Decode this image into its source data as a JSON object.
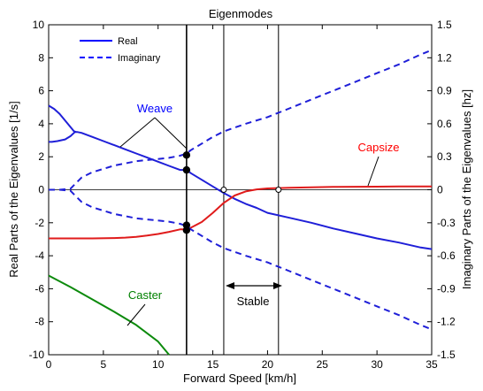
{
  "chart_data": {
    "type": "line",
    "title": "Eigenmodes",
    "xlabel": "Forward Speed [km/h]",
    "ylabel_left": "Real Parts of the Eigenvalues [1/s]",
    "ylabel_right": "Imaginary Parts of the Eigenvalues [hz]",
    "xlim": [
      0,
      35
    ],
    "ylim_left": [
      -10,
      10
    ],
    "ylim_right": [
      -1.5,
      1.5
    ],
    "xticks": [
      "0",
      "5",
      "10",
      "15",
      "20",
      "25",
      "30",
      "35"
    ],
    "yticks_left": [
      "-10",
      "-8",
      "-6",
      "-4",
      "-2",
      "0",
      "2",
      "4",
      "6",
      "8",
      "10"
    ],
    "yticks_right": [
      "-1.5",
      "-1.2",
      "-0.9",
      "-0.6",
      "-0.3",
      "0",
      "0.3",
      "0.6",
      "0.9",
      "1.2",
      "1.5"
    ],
    "grid": false,
    "legend_position": "top-left",
    "legend": [
      {
        "label": "Real",
        "style": "solid",
        "color": "#0000ff"
      },
      {
        "label": "Imaginary",
        "style": "dashed",
        "color": "#0000ff"
      }
    ],
    "series": [
      {
        "name": "Weave",
        "part": "real",
        "color": "#1f1fd8",
        "x": [
          0,
          0.3,
          0.8,
          1.5,
          2.0,
          2.4,
          2.6,
          3,
          4,
          5,
          6,
          7,
          8,
          9,
          10,
          11,
          12,
          12.6,
          13,
          14,
          15,
          16,
          17,
          18,
          19,
          20,
          22,
          24,
          26,
          28,
          30,
          32,
          34,
          35
        ],
        "y": [
          2.9,
          2.9,
          2.95,
          3.05,
          3.25,
          3.5,
          3.5,
          3.45,
          3.2,
          2.95,
          2.7,
          2.45,
          2.2,
          1.95,
          1.7,
          1.45,
          1.2,
          1.2,
          1.0,
          0.6,
          0.2,
          -0.2,
          -0.55,
          -0.85,
          -1.1,
          -1.4,
          -1.7,
          -2.0,
          -2.35,
          -2.65,
          -2.95,
          -3.2,
          -3.5,
          -3.6
        ]
      },
      {
        "name": "",
        "part": "real",
        "color": "#1f1fd8",
        "x": [
          0,
          0.5,
          1.0,
          1.5,
          2.0,
          2.3,
          2.5
        ],
        "y": [
          5.1,
          4.9,
          4.6,
          4.2,
          3.8,
          3.55,
          3.5
        ]
      },
      {
        "name": "Capsize",
        "part": "real",
        "color": "#e01b1b",
        "x": [
          0,
          2,
          4,
          6,
          7,
          8,
          9,
          10,
          11,
          12,
          12.6,
          13,
          14,
          15,
          16,
          17,
          18,
          19,
          20,
          21,
          22,
          24,
          26,
          28,
          30,
          32,
          35
        ],
        "y": [
          -2.95,
          -2.95,
          -2.95,
          -2.93,
          -2.9,
          -2.85,
          -2.78,
          -2.68,
          -2.55,
          -2.4,
          -2.4,
          -2.3,
          -1.95,
          -1.4,
          -0.8,
          -0.35,
          -0.1,
          0.02,
          0.08,
          0.1,
          0.12,
          0.15,
          0.17,
          0.18,
          0.19,
          0.2,
          0.2
        ]
      },
      {
        "name": "Caster",
        "part": "real",
        "color": "#0c8a0c",
        "x": [
          0,
          2,
          4,
          6,
          8,
          10,
          11
        ],
        "y": [
          -5.2,
          -5.9,
          -6.65,
          -7.4,
          -8.2,
          -9.2,
          -10.0
        ]
      },
      {
        "name": "Weave imaginary (+)",
        "part": "imaginary",
        "color": "#1f1fd8",
        "x": [
          0,
          1,
          2,
          2.5,
          3,
          4,
          5,
          6,
          7,
          8,
          9,
          10,
          11,
          12,
          12.6,
          13,
          14,
          15,
          16,
          18,
          20,
          22,
          24,
          26,
          28,
          30,
          32,
          34,
          35
        ],
        "y": [
          0.0,
          0.0,
          0.01,
          0.06,
          0.11,
          0.16,
          0.19,
          0.22,
          0.24,
          0.26,
          0.27,
          0.28,
          0.29,
          0.31,
          0.33,
          0.36,
          0.42,
          0.48,
          0.53,
          0.6,
          0.66,
          0.74,
          0.82,
          0.9,
          0.98,
          1.06,
          1.14,
          1.23,
          1.27
        ]
      },
      {
        "name": "Weave imaginary (-)",
        "part": "imaginary",
        "color": "#1f1fd8",
        "x": [
          0,
          1,
          2,
          2.5,
          3,
          4,
          5,
          6,
          7,
          8,
          9,
          10,
          11,
          12,
          12.6,
          13,
          14,
          15,
          16,
          18,
          20,
          22,
          24,
          26,
          28,
          30,
          32,
          34,
          35
        ],
        "y": [
          0.0,
          0.0,
          -0.01,
          -0.06,
          -0.11,
          -0.16,
          -0.19,
          -0.22,
          -0.24,
          -0.26,
          -0.27,
          -0.28,
          -0.29,
          -0.31,
          -0.33,
          -0.36,
          -0.42,
          -0.48,
          -0.53,
          -0.6,
          -0.66,
          -0.74,
          -0.82,
          -0.9,
          -0.98,
          -1.06,
          -1.14,
          -1.23,
          -1.27
        ]
      }
    ],
    "vertical_lines": [
      12.6,
      16.0,
      21.0
    ],
    "points_real": [
      {
        "x": 12.6,
        "y": 2.1
      },
      {
        "x": 12.6,
        "y": 1.2
      },
      {
        "x": 12.6,
        "y": -2.15
      },
      {
        "x": 12.6,
        "y": -2.45
      }
    ],
    "open_markers_real": [
      {
        "x": 16.0,
        "y": 0.0
      },
      {
        "x": 21.0,
        "y": 0.0
      }
    ],
    "annotations": [
      {
        "text": "Weave",
        "color": "#0000ff"
      },
      {
        "text": "Capsize",
        "color": "#ff0000"
      },
      {
        "text": "Caster",
        "color": "#008000"
      },
      {
        "text": "Stable",
        "color": "#000000"
      }
    ]
  }
}
